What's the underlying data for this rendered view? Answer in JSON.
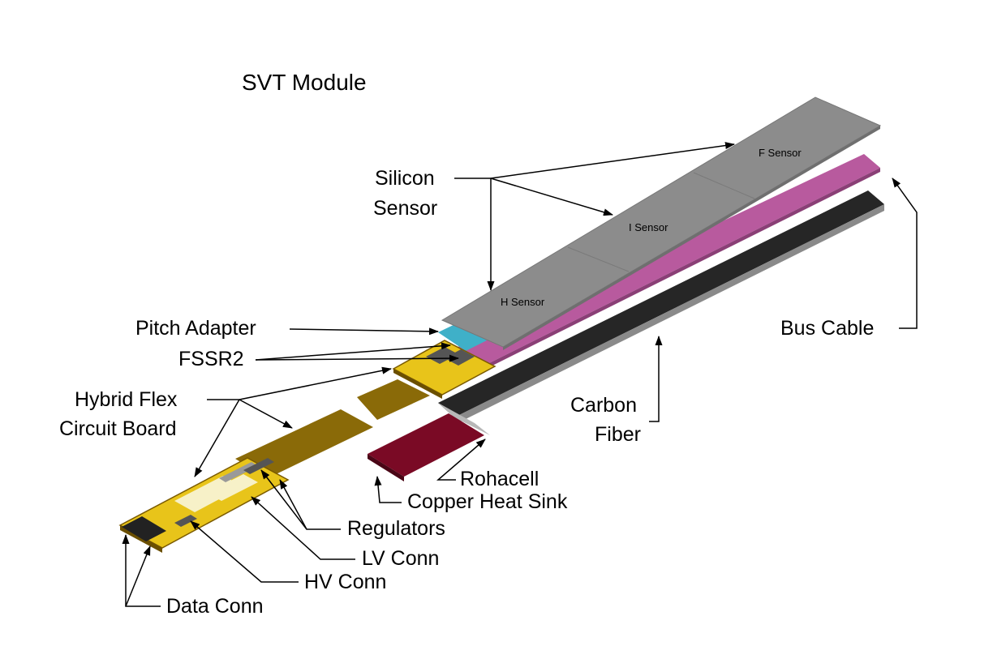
{
  "title": "SVT Module",
  "labels": {
    "silicon_sensor_line1": "Silicon",
    "silicon_sensor_line2": "Sensor",
    "pitch_adapter": "Pitch Adapter",
    "fssr2": "FSSR2",
    "hybrid_line1": "Hybrid Flex",
    "hybrid_line2": "Circuit Board",
    "regulators": "Regulators",
    "lv_conn": "LV Conn",
    "hv_conn": "HV Conn",
    "data_conn": "Data Conn",
    "bus_cable": "Bus Cable",
    "carbon_line1": "Carbon",
    "carbon_line2": "Fiber",
    "rohacell": "Rohacell",
    "copper_heat_sink": "Copper Heat Sink"
  },
  "sensors": {
    "h": "H Sensor",
    "i": "I Sensor",
    "f": "F Sensor"
  },
  "colors": {
    "sensor": "#8c8c8c",
    "sensor_edge": "#6f6f6f",
    "bus_cable": "#b85a9e",
    "carbon_fiber": "#262626",
    "rohacell": "#b8b8b8",
    "copper": "#7a0a25",
    "flex": "#8a6a08",
    "hybrid": "#e8c41a",
    "pitch_adapter": "#3fb0c8"
  }
}
